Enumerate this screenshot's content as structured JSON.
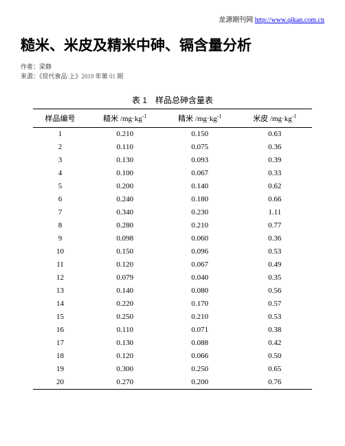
{
  "header": {
    "source_site_label": "龙源期刊网",
    "source_url": "http://www.qikan.com.cn"
  },
  "article": {
    "title": "糙米、米皮及精米中砷、镉含量分析",
    "author_label": "作者：",
    "author": "梁静",
    "source_label": "来源：",
    "source": "《现代食品·上》2019 年第 01 期"
  },
  "table": {
    "caption": "表 1　样品总砷含量表",
    "columns": [
      "样品编号",
      "糙米 /mg·kg",
      "精米 /mg·kg",
      "米皮 /mg·kg"
    ],
    "unit_sup": "-1",
    "rows": [
      [
        "1",
        "0.210",
        "0.150",
        "0.63"
      ],
      [
        "2",
        "0.110",
        "0.075",
        "0.36"
      ],
      [
        "3",
        "0.130",
        "0.093",
        "0.39"
      ],
      [
        "4",
        "0.100",
        "0.067",
        "0.33"
      ],
      [
        "5",
        "0.200",
        "0.140",
        "0.62"
      ],
      [
        "6",
        "0.240",
        "0.180",
        "0.66"
      ],
      [
        "7",
        "0.340",
        "0.230",
        "1.11"
      ],
      [
        "8",
        "0.280",
        "0.210",
        "0.77"
      ],
      [
        "9",
        "0.098",
        "0.060",
        "0.36"
      ],
      [
        "10",
        "0.150",
        "0.096",
        "0.53"
      ],
      [
        "11",
        "0.120",
        "0.067",
        "0.49"
      ],
      [
        "12",
        "0.079",
        "0.040",
        "0.35"
      ],
      [
        "13",
        "0.140",
        "0.080",
        "0.56"
      ],
      [
        "14",
        "0.220",
        "0.170",
        "0.57"
      ],
      [
        "15",
        "0.250",
        "0.210",
        "0.53"
      ],
      [
        "16",
        "0.110",
        "0.071",
        "0.38"
      ],
      [
        "17",
        "0.130",
        "0.088",
        "0.42"
      ],
      [
        "18",
        "0.120",
        "0.066",
        "0.50"
      ],
      [
        "19",
        "0.300",
        "0.250",
        "0.65"
      ],
      [
        "20",
        "0.270",
        "0.200",
        "0.76"
      ]
    ]
  }
}
